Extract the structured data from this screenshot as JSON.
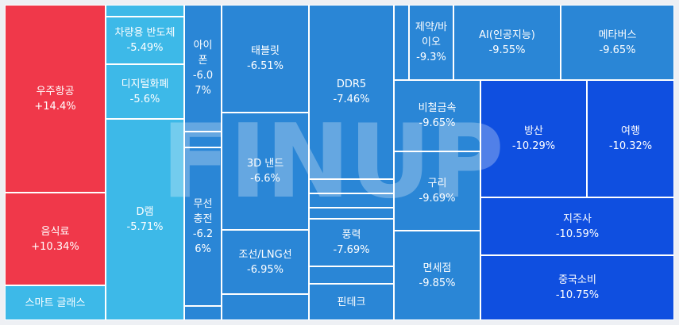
{
  "watermark": "FINUP",
  "colors": {
    "up": "#f0384a",
    "light": "#3db9e8",
    "mid": "#2a86d6",
    "dark": "#1b5ed9",
    "deep": "#0f4fe0"
  },
  "chart_data": {
    "type": "treemap",
    "tiles": [
      {
        "id": "space",
        "name": "우주항공",
        "change": "+14.4%",
        "value": 14.4,
        "color": "#f0384a"
      },
      {
        "id": "food",
        "name": "음식료",
        "change": "+10.34%",
        "value": 10.34,
        "color": "#f0384a"
      },
      {
        "id": "smartglass",
        "name": "스마트 글래스",
        "change": "",
        "value": null,
        "color": "#3db9e8"
      },
      {
        "id": "blank_top",
        "name": "",
        "change": "",
        "value": null,
        "color": "#3db9e8"
      },
      {
        "id": "semicar",
        "name": "차량용 반도체",
        "change": "-5.49%",
        "value": -5.49,
        "color": "#3db9e8"
      },
      {
        "id": "digital",
        "name": "디지털화폐",
        "change": "-5.6%",
        "value": -5.6,
        "color": "#3db9e8"
      },
      {
        "id": "dram",
        "name": "D램",
        "change": "-5.71%",
        "value": -5.71,
        "color": "#3db9e8"
      },
      {
        "id": "iphone",
        "name": "아이\n폰",
        "change": "-6.0\n7%",
        "value": -6.07,
        "color": "#2a86d6"
      },
      {
        "id": "blank_i",
        "name": "",
        "change": "",
        "value": null,
        "color": "#2a86d6"
      },
      {
        "id": "wireless",
        "name": "무선\n충전",
        "change": "-6.2\n6%",
        "value": -6.26,
        "color": "#2a86d6"
      },
      {
        "id": "blank_w",
        "name": "",
        "change": "",
        "value": null,
        "color": "#2a86d6"
      },
      {
        "id": "tablet",
        "name": "태블릿",
        "change": "-6.51%",
        "value": -6.51,
        "color": "#2a86d6"
      },
      {
        "id": "nand",
        "name": "3D 낸드",
        "change": "-6.6%",
        "value": -6.6,
        "color": "#2a86d6"
      },
      {
        "id": "ship",
        "name": "조선/LNG선",
        "change": "-6.95%",
        "value": -6.95,
        "color": "#2a86d6"
      },
      {
        "id": "blank_s",
        "name": "",
        "change": "",
        "value": null,
        "color": "#2a86d6"
      },
      {
        "id": "ddr5",
        "name": "DDR5",
        "change": "-7.46%",
        "value": -7.46,
        "color": "#2a86d6"
      },
      {
        "id": "blank_d1",
        "name": "",
        "change": "",
        "value": null,
        "color": "#2a86d6"
      },
      {
        "id": "blank_d2",
        "name": "",
        "change": "",
        "value": null,
        "color": "#2a86d6"
      },
      {
        "id": "blank_d3",
        "name": "",
        "change": "",
        "value": null,
        "color": "#2a86d6"
      },
      {
        "id": "wind",
        "name": "풍력",
        "change": "-7.69%",
        "value": -7.69,
        "color": "#2a86d6"
      },
      {
        "id": "blank_d4",
        "name": "",
        "change": "",
        "value": null,
        "color": "#2a86d6"
      },
      {
        "id": "fintech",
        "name": "핀테크",
        "change": "",
        "value": null,
        "color": "#2a86d6"
      },
      {
        "id": "blank_t",
        "name": "",
        "change": "",
        "value": null,
        "color": "#2a86d6"
      },
      {
        "id": "pharma",
        "name": "제약/바\n이오",
        "change": "-9.3%",
        "value": -9.3,
        "color": "#2a86d6"
      },
      {
        "id": "ai",
        "name": "AI(인공지능)",
        "change": "-9.55%",
        "value": -9.55,
        "color": "#2a86d6"
      },
      {
        "id": "meta",
        "name": "메타버스",
        "change": "-9.65%",
        "value": -9.65,
        "color": "#2a86d6"
      },
      {
        "id": "nonferrous",
        "name": "비철금속",
        "change": "-9.65%",
        "value": -9.65,
        "color": "#2a86d6"
      },
      {
        "id": "copper",
        "name": "구리",
        "change": "-9.69%",
        "value": -9.69,
        "color": "#2a86d6"
      },
      {
        "id": "dutyfree",
        "name": "면세점",
        "change": "-9.85%",
        "value": -9.85,
        "color": "#2a86d6"
      },
      {
        "id": "defense",
        "name": "방산",
        "change": "-10.29%",
        "value": -10.29,
        "color": "#0f4fe0"
      },
      {
        "id": "travel",
        "name": "여행",
        "change": "-10.32%",
        "value": -10.32,
        "color": "#0f4fe0"
      },
      {
        "id": "holding",
        "name": "지주사",
        "change": "-10.59%",
        "value": -10.59,
        "color": "#0f4fe0"
      },
      {
        "id": "china",
        "name": "중국소비",
        "change": "-10.75%",
        "value": -10.75,
        "color": "#0f4fe0"
      }
    ]
  }
}
